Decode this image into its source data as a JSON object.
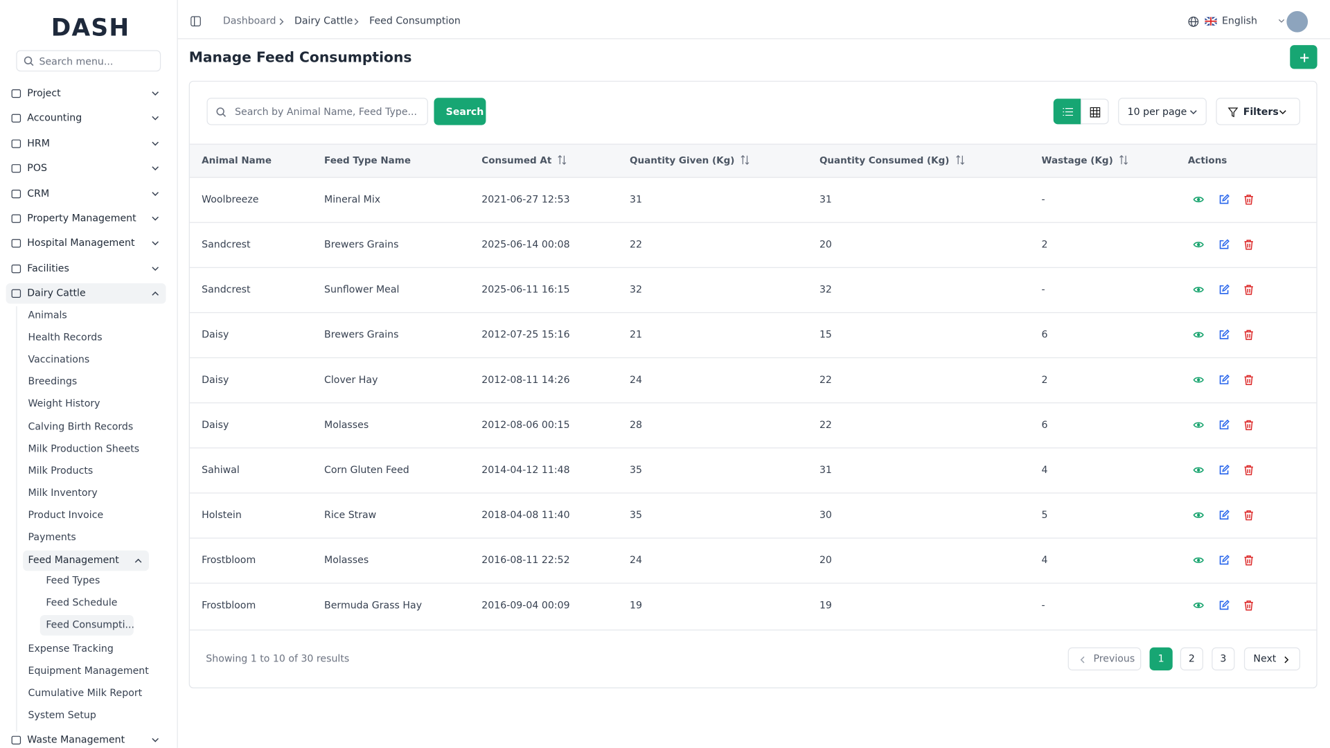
{
  "logo": "DASH",
  "sidebar": {
    "search_placeholder": "Search menu...",
    "modules_top": [
      "Project",
      "Accounting",
      "HRM",
      "POS",
      "CRM",
      "Property Management",
      "Hospital Management",
      "Facilities"
    ],
    "active_module": "Dairy Cattle",
    "dairy_items": [
      "Animals",
      "Health Records",
      "Vaccinations",
      "Breedings",
      "Weight History",
      "Calving Birth Records",
      "Milk Production Sheets",
      "Milk Products",
      "Milk Inventory",
      "Product Invoice",
      "Payments"
    ],
    "feed_group": "Feed Management",
    "feed_items": [
      "Feed Types",
      "Feed Schedule",
      "Feed Consumpti..."
    ],
    "dairy_items_after": [
      "Expense Tracking",
      "Equipment Management",
      "Cumulative Milk Report",
      "System Setup"
    ],
    "modules_bottom": [
      "Waste Management"
    ]
  },
  "header": {
    "breadcrumbs": [
      "Dashboard",
      "Dairy Cattle",
      "Feed Consumption"
    ],
    "language": "English"
  },
  "page": {
    "title": "Manage Feed Consumptions"
  },
  "toolbar": {
    "search_placeholder": "Search by Animal Name, Feed Type...",
    "search_button": "Search",
    "per_page": "10 per page",
    "filters": "Filters"
  },
  "table": {
    "columns": [
      "Animal Name",
      "Feed Type Name",
      "Consumed At",
      "Quantity Given (Kg)",
      "Quantity Consumed (Kg)",
      "Wastage (Kg)",
      "Actions"
    ],
    "rows": [
      [
        "Woolbreeze",
        "Mineral Mix",
        "2021-06-27 12:53",
        31,
        31,
        "-"
      ],
      [
        "Sandcrest",
        "Brewers Grains",
        "2025-06-14 00:08",
        22,
        20,
        2
      ],
      [
        "Sandcrest",
        "Sunflower Meal",
        "2025-06-11 16:15",
        32,
        32,
        "-"
      ],
      [
        "Daisy",
        "Brewers Grains",
        "2012-07-25 15:16",
        21,
        15,
        6
      ],
      [
        "Daisy",
        "Clover Hay",
        "2012-08-11 14:26",
        24,
        22,
        2
      ],
      [
        "Daisy",
        "Molasses",
        "2012-08-06 00:15",
        28,
        22,
        6
      ],
      [
        "Sahiwal",
        "Corn Gluten Feed",
        "2014-04-12 11:48",
        35,
        31,
        4
      ],
      [
        "Holstein",
        "Rice Straw",
        "2018-04-08 11:40",
        35,
        30,
        5
      ],
      [
        "Frostbloom",
        "Molasses",
        "2016-08-11 22:52",
        24,
        20,
        4
      ],
      [
        "Frostbloom",
        "Bermuda Grass Hay",
        "2016-09-04 00:09",
        19,
        19,
        "-"
      ]
    ]
  },
  "footer": {
    "summary": "Showing 1 to 10 of 30 results",
    "previous": "Previous",
    "pages": [
      1,
      2,
      3
    ],
    "next": "Next"
  }
}
